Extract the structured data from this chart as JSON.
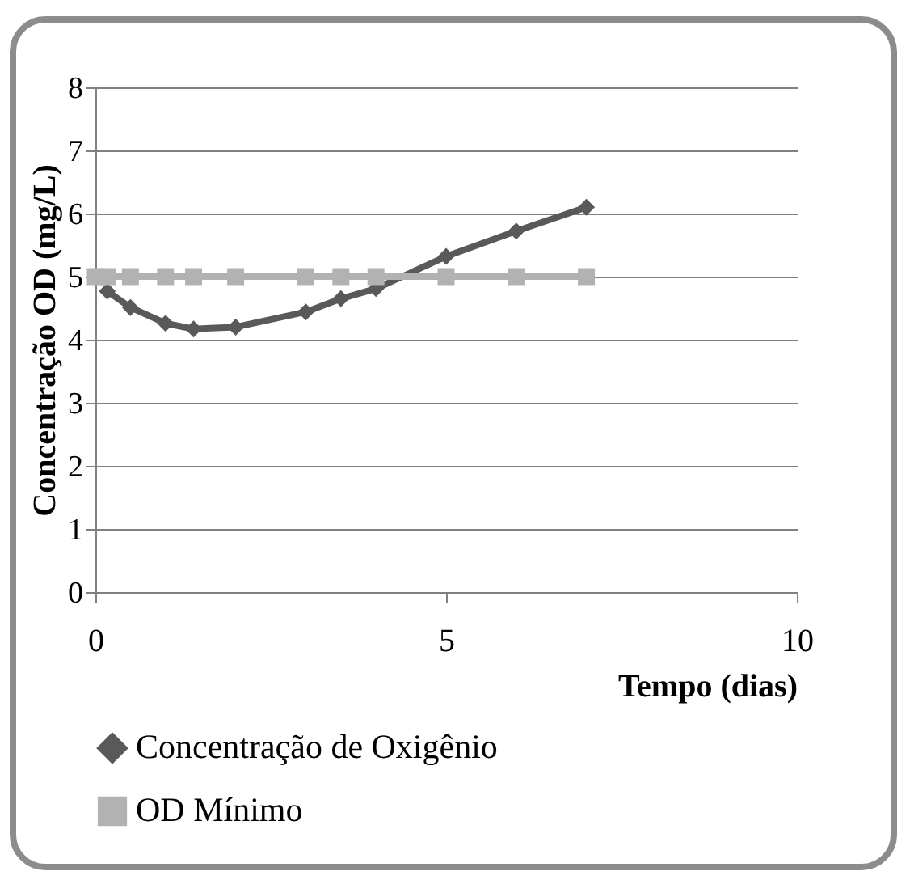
{
  "chart_data": {
    "type": "line",
    "xlabel": "Tempo (dias)",
    "ylabel": "Concentração OD (mg/L)",
    "xlim": [
      0,
      10
    ],
    "xticks": [
      0,
      5,
      10
    ],
    "ylim": [
      0,
      8
    ],
    "yticks": [
      0,
      1,
      2,
      3,
      4,
      5,
      6,
      7,
      8
    ],
    "grid": "y",
    "legend": "bottom",
    "line_style": "solid",
    "series": [
      {
        "name": "Concentração de Oxigênio",
        "color": "#595959",
        "marker": "diamond",
        "x": [
          0.17,
          0.5,
          1,
          1.4,
          2,
          3,
          3.5,
          4,
          5,
          6,
          7
        ],
        "values": [
          4.77,
          4.51,
          4.26,
          4.17,
          4.2,
          4.44,
          4.65,
          4.81,
          5.32,
          5.72,
          6.1
        ]
      },
      {
        "name": "OD Mínimo",
        "color": "#b2b2b2",
        "marker": "square",
        "x": [
          0,
          0.17,
          0.5,
          1,
          1.4,
          2,
          3,
          3.5,
          4,
          5,
          6,
          7
        ],
        "values": [
          5,
          5,
          5,
          5,
          5,
          5,
          5,
          5,
          5,
          5,
          5,
          5
        ]
      }
    ]
  }
}
